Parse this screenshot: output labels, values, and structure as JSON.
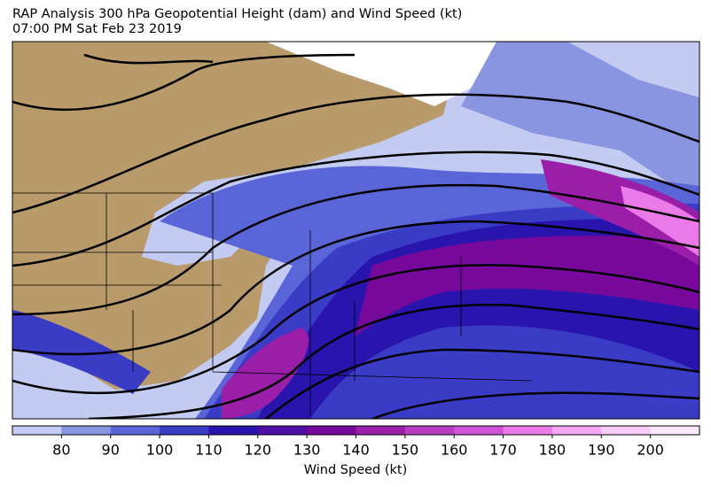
{
  "title": "RAP Analysis 300 hPa Geopotential Height (dam) and Wind Speed (kt)",
  "subtitle": "07:00 PM Sat Feb 23 2019",
  "colorbar": {
    "label": "Wind Speed (kt)",
    "lim": [
      70,
      210
    ],
    "ticks": [
      80,
      90,
      100,
      110,
      120,
      130,
      140,
      150,
      160,
      170,
      180,
      190,
      200
    ],
    "colors": [
      "#c3cbf2",
      "#8a95e2",
      "#5a66d8",
      "#3a3cc6",
      "#2a14ae",
      "#4f0ea6",
      "#77089c",
      "#9a1ea8",
      "#b83ac0",
      "#d052d6",
      "#ea7ae8",
      "#f4a6f2",
      "#f9ccf8",
      "#fde9fd"
    ]
  }
}
